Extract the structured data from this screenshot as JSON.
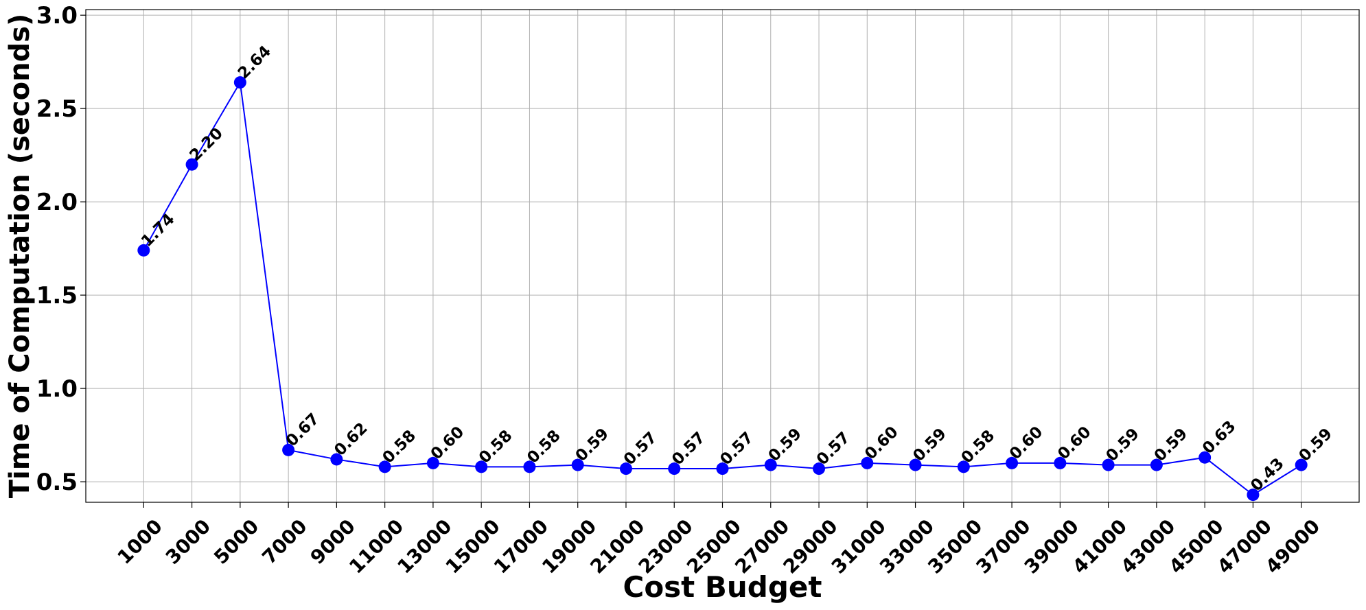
{
  "chart_data": {
    "type": "line",
    "title": "",
    "xlabel": "Cost Budget",
    "ylabel": "Time of Computation (seconds)",
    "x": [
      1000,
      3000,
      5000,
      7000,
      9000,
      11000,
      13000,
      15000,
      17000,
      19000,
      21000,
      23000,
      25000,
      27000,
      29000,
      31000,
      33000,
      35000,
      37000,
      39000,
      41000,
      43000,
      45000,
      47000,
      49000
    ],
    "categories": [
      "1000",
      "3000",
      "5000",
      "7000",
      "9000",
      "11000",
      "13000",
      "15000",
      "17000",
      "19000",
      "21000",
      "23000",
      "25000",
      "27000",
      "29000",
      "31000",
      "33000",
      "35000",
      "37000",
      "39000",
      "41000",
      "43000",
      "45000",
      "47000",
      "49000"
    ],
    "series": [
      {
        "values": [
          1.74,
          2.2,
          2.64,
          0.67,
          0.62,
          0.58,
          0.6,
          0.58,
          0.58,
          0.59,
          0.57,
          0.57,
          0.57,
          0.59,
          0.57,
          0.6,
          0.59,
          0.58,
          0.6,
          0.6,
          0.59,
          0.59,
          0.63,
          0.43,
          0.59
        ],
        "data_labels": [
          "1.74",
          "2.20",
          "2.64",
          "0.67",
          "0.62",
          "0.58",
          "0.60",
          "0.58",
          "0.58",
          "0.59",
          "0.57",
          "0.57",
          "0.57",
          "0.59",
          "0.57",
          "0.60",
          "0.59",
          "0.58",
          "0.60",
          "0.60",
          "0.59",
          "0.59",
          "0.63",
          "0.43",
          "0.59"
        ],
        "color": "#0000ff"
      }
    ],
    "yticks": [
      "0.5",
      "1.0",
      "1.5",
      "2.0",
      "2.5",
      "3.0"
    ],
    "ytick_values": [
      0.5,
      1.0,
      1.5,
      2.0,
      2.5,
      3.0
    ],
    "ylim": [
      0.39,
      3.03
    ],
    "xlim": [
      -1.2,
      25.2
    ],
    "grid": true,
    "legend": "none"
  }
}
